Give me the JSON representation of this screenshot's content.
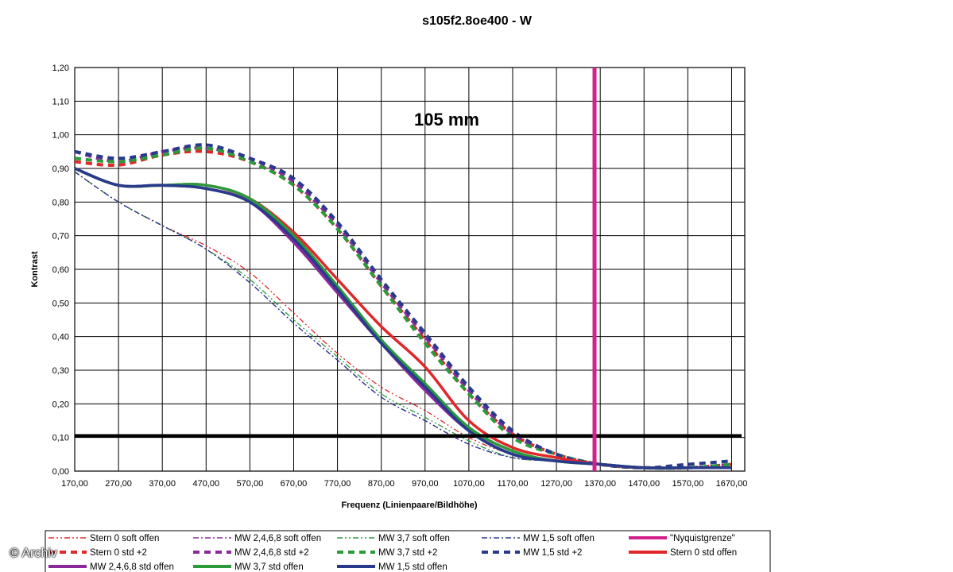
{
  "credit": "© Archiv",
  "chart_data": {
    "type": "line",
    "title": "s105f2.8oe400 - W",
    "annotation": "105 mm",
    "xlabel": "Frequenz (Linienpaare/Bildhöhe)",
    "ylabel": "Kontrast",
    "xlim": [
      170,
      1700
    ],
    "ylim": [
      0,
      1.2
    ],
    "x_ticks": [
      "170,00",
      "270,00",
      "370,00",
      "470,00",
      "570,00",
      "670,00",
      "770,00",
      "870,00",
      "970,00",
      "1070,00",
      "1170,00",
      "1270,00",
      "1370,00",
      "1470,00",
      "1570,00",
      "1670,00"
    ],
    "y_ticks": [
      "0,00",
      "0,10",
      "0,20",
      "0,30",
      "0,40",
      "0,50",
      "0,60",
      "0,70",
      "0,80",
      "0,90",
      "1,00",
      "1,10",
      "1,20"
    ],
    "grid": true,
    "reference_lines": [
      {
        "axis": "y",
        "value": 0.105,
        "color": "#000000"
      },
      {
        "name": "\"Nyquistgrenze\"",
        "axis": "x",
        "value": 1357,
        "color": "#d4208c"
      }
    ],
    "series": [
      {
        "name": "Stern 0 soft offen",
        "color": "#e0282a",
        "style": "dashdotdot",
        "width": 1.3,
        "x": [
          170,
          270,
          370,
          470,
          570,
          670,
          770,
          870,
          970,
          1070,
          1170,
          1270,
          1370,
          1470,
          1570,
          1670
        ],
        "y": [
          0.89,
          0.8,
          0.73,
          0.67,
          0.59,
          0.47,
          0.35,
          0.25,
          0.18,
          0.1,
          0.05,
          0.03,
          0.02,
          0.01,
          0.01,
          0.01
        ]
      },
      {
        "name": "MW 2,4,6,8 soft offen",
        "color": "#8a2a9a",
        "style": "dashdot",
        "width": 1.3,
        "x": [
          170,
          270,
          370,
          470,
          570,
          670,
          770,
          870,
          970,
          1070,
          1170,
          1270,
          1370,
          1470,
          1570,
          1670
        ],
        "y": [
          0.89,
          0.8,
          0.73,
          0.66,
          0.56,
          0.44,
          0.33,
          0.22,
          0.15,
          0.08,
          0.04,
          0.03,
          0.02,
          0.01,
          0.01,
          0.01
        ]
      },
      {
        "name": "MW 3,7 soft offen",
        "color": "#2a9a3a",
        "style": "dashdotdot",
        "width": 1.3,
        "x": [
          170,
          270,
          370,
          470,
          570,
          670,
          770,
          870,
          970,
          1070,
          1170,
          1270,
          1370,
          1470,
          1570,
          1670
        ],
        "y": [
          0.89,
          0.8,
          0.73,
          0.66,
          0.57,
          0.45,
          0.34,
          0.23,
          0.16,
          0.09,
          0.04,
          0.03,
          0.02,
          0.01,
          0.01,
          0.01
        ]
      },
      {
        "name": "MW 1,5 soft offen",
        "color": "#283a8c",
        "style": "dashdot",
        "width": 1.3,
        "x": [
          170,
          270,
          370,
          470,
          570,
          670,
          770,
          870,
          970,
          1070,
          1170,
          1270,
          1370,
          1470,
          1570,
          1670
        ],
        "y": [
          0.89,
          0.8,
          0.73,
          0.66,
          0.56,
          0.44,
          0.33,
          0.22,
          0.15,
          0.08,
          0.04,
          0.03,
          0.02,
          0.01,
          0.01,
          0.01
        ]
      },
      {
        "name": "Stern 0 std +2",
        "color": "#e0282a",
        "style": "dashed",
        "width": 4,
        "x": [
          170,
          270,
          370,
          470,
          570,
          670,
          770,
          870,
          970,
          1070,
          1170,
          1270,
          1370,
          1470,
          1570,
          1670
        ],
        "y": [
          0.92,
          0.91,
          0.94,
          0.95,
          0.92,
          0.85,
          0.72,
          0.55,
          0.39,
          0.23,
          0.11,
          0.05,
          0.02,
          0.01,
          0.01,
          0.02
        ]
      },
      {
        "name": "MW 2,4,6,8 std +2",
        "color": "#8a2a9a",
        "style": "dashed",
        "width": 4,
        "x": [
          170,
          270,
          370,
          470,
          570,
          670,
          770,
          870,
          970,
          1070,
          1170,
          1270,
          1370,
          1470,
          1570,
          1670
        ],
        "y": [
          0.95,
          0.92,
          0.95,
          0.96,
          0.93,
          0.86,
          0.73,
          0.56,
          0.4,
          0.24,
          0.11,
          0.05,
          0.02,
          0.01,
          0.01,
          0.02
        ]
      },
      {
        "name": "MW 3,7 std +2",
        "color": "#2a9a3a",
        "style": "dashed",
        "width": 4,
        "x": [
          170,
          270,
          370,
          470,
          570,
          670,
          770,
          870,
          970,
          1070,
          1170,
          1270,
          1370,
          1470,
          1570,
          1670
        ],
        "y": [
          0.93,
          0.92,
          0.94,
          0.96,
          0.92,
          0.85,
          0.72,
          0.55,
          0.38,
          0.23,
          0.1,
          0.05,
          0.02,
          0.01,
          0.01,
          0.02
        ]
      },
      {
        "name": "MW 1,5 std +2",
        "color": "#283a8c",
        "style": "dashed",
        "width": 4,
        "x": [
          170,
          270,
          370,
          470,
          570,
          670,
          770,
          870,
          970,
          1070,
          1170,
          1270,
          1370,
          1470,
          1570,
          1670
        ],
        "y": [
          0.95,
          0.93,
          0.95,
          0.97,
          0.93,
          0.87,
          0.74,
          0.57,
          0.41,
          0.25,
          0.12,
          0.05,
          0.02,
          0.01,
          0.02,
          0.03
        ]
      },
      {
        "name": "Stern 0 std offen",
        "color": "#e0282a",
        "style": "solid",
        "width": 3.5,
        "x": [
          170,
          270,
          370,
          470,
          570,
          670,
          770,
          870,
          970,
          1070,
          1170,
          1270,
          1370,
          1470,
          1570,
          1670
        ],
        "y": [
          0.9,
          0.85,
          0.85,
          0.85,
          0.81,
          0.71,
          0.57,
          0.43,
          0.31,
          0.15,
          0.07,
          0.04,
          0.02,
          0.01,
          0.01,
          0.01
        ]
      },
      {
        "name": "MW 2,4,6,8 std offen",
        "color": "#8a2a9a",
        "style": "solid",
        "width": 3.5,
        "x": [
          170,
          270,
          370,
          470,
          570,
          670,
          770,
          870,
          970,
          1070,
          1170,
          1270,
          1370,
          1470,
          1570,
          1670
        ],
        "y": [
          0.9,
          0.85,
          0.85,
          0.84,
          0.8,
          0.68,
          0.53,
          0.38,
          0.24,
          0.12,
          0.05,
          0.03,
          0.02,
          0.01,
          0.01,
          0.01
        ]
      },
      {
        "name": "MW 3,7 std offen",
        "color": "#2a9a3a",
        "style": "solid",
        "width": 3.5,
        "x": [
          170,
          270,
          370,
          470,
          570,
          670,
          770,
          870,
          970,
          1070,
          1170,
          1270,
          1370,
          1470,
          1570,
          1670
        ],
        "y": [
          0.9,
          0.85,
          0.85,
          0.85,
          0.81,
          0.7,
          0.55,
          0.39,
          0.26,
          0.13,
          0.06,
          0.03,
          0.02,
          0.01,
          0.01,
          0.01
        ]
      },
      {
        "name": "MW 1,5 std offen",
        "color": "#283a8c",
        "style": "solid",
        "width": 3.5,
        "x": [
          170,
          270,
          370,
          470,
          570,
          670,
          770,
          870,
          970,
          1070,
          1170,
          1270,
          1370,
          1470,
          1570,
          1670
        ],
        "y": [
          0.9,
          0.85,
          0.85,
          0.84,
          0.8,
          0.69,
          0.54,
          0.38,
          0.25,
          0.12,
          0.05,
          0.03,
          0.02,
          0.01,
          0.01,
          0.01
        ]
      }
    ],
    "legend": {
      "placement": "bottom",
      "items": [
        {
          "label": "Stern 0 soft offen",
          "color": "#e0282a",
          "style": "dashdotdot"
        },
        {
          "label": "MW 2,4,6,8 soft offen",
          "color": "#8a2a9a",
          "style": "dashdot"
        },
        {
          "label": "MW 3,7 soft offen",
          "color": "#2a9a3a",
          "style": "dashdotdot"
        },
        {
          "label": "MW 1,5 soft offen",
          "color": "#283a8c",
          "style": "dashdot"
        },
        {
          "label": "\"Nyquistgrenze\"",
          "color": "#d4208c",
          "style": "solid"
        },
        {
          "label": "Stern 0 std +2",
          "color": "#e0282a",
          "style": "dashed"
        },
        {
          "label": "MW 2,4,6,8 std +2",
          "color": "#8a2a9a",
          "style": "dashed"
        },
        {
          "label": "MW 3,7 std +2",
          "color": "#2a9a3a",
          "style": "dashed"
        },
        {
          "label": "MW 1,5 std +2",
          "color": "#283a8c",
          "style": "dashed"
        },
        {
          "label": "Stern 0 std offen",
          "color": "#e0282a",
          "style": "solid"
        },
        {
          "label": "MW 2,4,6,8 std offen",
          "color": "#8a2a9a",
          "style": "solid"
        },
        {
          "label": "MW 3,7 std offen",
          "color": "#2a9a3a",
          "style": "solid"
        },
        {
          "label": "MW 1,5 std offen",
          "color": "#283a8c",
          "style": "solid"
        }
      ]
    }
  }
}
